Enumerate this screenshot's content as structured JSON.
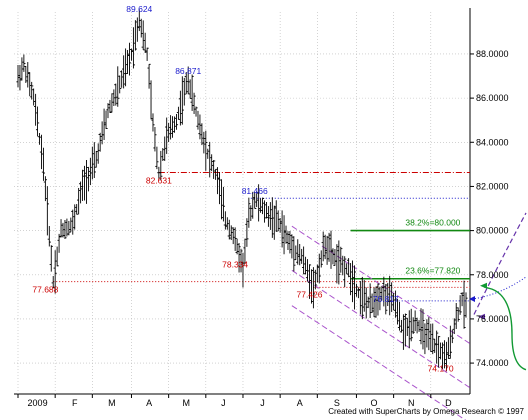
{
  "chart_data": {
    "type": "ohlc",
    "y_axis": {
      "min": 72.6,
      "max": 89.9,
      "ticks": [
        "74.0000",
        "76.0000",
        "78.0000",
        "80.0000",
        "82.0000",
        "84.0000",
        "86.0000",
        "88.0000"
      ],
      "tick_values": [
        74,
        76,
        78,
        80,
        82,
        84,
        86,
        88
      ],
      "side": "right",
      "grid": true
    },
    "x_axis": {
      "labels": [
        "2009",
        "F",
        "M",
        "A",
        "M",
        "J",
        "J",
        "A",
        "S",
        "O",
        "N",
        "D"
      ],
      "grid": true
    },
    "price_anchors": [
      {
        "i": 0,
        "v": 86.9
      },
      {
        "i": 3,
        "v": 87.5
      },
      {
        "i": 8,
        "v": 86.0
      },
      {
        "i": 13,
        "v": 83.0
      },
      {
        "i": 18,
        "v": 77.688
      },
      {
        "i": 22,
        "v": 80.0
      },
      {
        "i": 28,
        "v": 80.3
      },
      {
        "i": 33,
        "v": 82.0
      },
      {
        "i": 40,
        "v": 83.2
      },
      {
        "i": 46,
        "v": 85.4
      },
      {
        "i": 52,
        "v": 86.6
      },
      {
        "i": 58,
        "v": 88.0
      },
      {
        "i": 62,
        "v": 89.624
      },
      {
        "i": 66,
        "v": 88.0
      },
      {
        "i": 69,
        "v": 84.8
      },
      {
        "i": 72,
        "v": 82.631
      },
      {
        "i": 76,
        "v": 84.2
      },
      {
        "i": 81,
        "v": 85.0
      },
      {
        "i": 87,
        "v": 86.871
      },
      {
        "i": 92,
        "v": 85.0
      },
      {
        "i": 97,
        "v": 83.5
      },
      {
        "i": 102,
        "v": 82.3
      },
      {
        "i": 106,
        "v": 80.5
      },
      {
        "i": 110,
        "v": 79.8
      },
      {
        "i": 115,
        "v": 78.334
      },
      {
        "i": 118,
        "v": 80.6
      },
      {
        "i": 121,
        "v": 81.466
      },
      {
        "i": 127,
        "v": 80.8
      },
      {
        "i": 133,
        "v": 80.4
      },
      {
        "i": 139,
        "v": 79.4
      },
      {
        "i": 145,
        "v": 78.8
      },
      {
        "i": 151,
        "v": 77.426
      },
      {
        "i": 157,
        "v": 79.4
      },
      {
        "i": 163,
        "v": 78.6
      },
      {
        "i": 169,
        "v": 78.2
      },
      {
        "i": 174,
        "v": 77.2
      },
      {
        "i": 180,
        "v": 76.6
      },
      {
        "i": 186,
        "v": 77.2
      },
      {
        "i": 192,
        "v": 76.817
      },
      {
        "i": 197,
        "v": 75.4
      },
      {
        "i": 203,
        "v": 75.9
      },
      {
        "i": 209,
        "v": 75.2
      },
      {
        "i": 215,
        "v": 74.6
      },
      {
        "i": 219,
        "v": 74.17
      },
      {
        "i": 223,
        "v": 75.7
      },
      {
        "i": 227,
        "v": 76.9
      },
      {
        "i": 229,
        "v": 76.5
      }
    ],
    "bar_count": 230,
    "annotations": [
      {
        "text": "89.624",
        "value": 89.624,
        "color": "#1a1acc"
      },
      {
        "text": "86.871",
        "value": 86.871,
        "color": "#1a1acc"
      },
      {
        "text": "82.631",
        "value": 82.631,
        "color": "#cc0000"
      },
      {
        "text": "81.466",
        "value": 81.466,
        "color": "#1a1acc"
      },
      {
        "text": "78.334",
        "value": 78.334,
        "color": "#cc0000"
      },
      {
        "text": "77.688",
        "value": 77.688,
        "color": "#cc0000"
      },
      {
        "text": "77.426",
        "value": 77.426,
        "color": "#cc0000"
      },
      {
        "text": "76.817",
        "value": 76.817,
        "color": "#1a1acc"
      },
      {
        "text": "74.170",
        "value": 74.17,
        "color": "#cc0000"
      },
      {
        "text": "38.2%=80.000",
        "value": 80.0,
        "color": "#118811"
      },
      {
        "text": "23.6%=77.820",
        "value": 77.82,
        "color": "#118811"
      }
    ],
    "horizontal_lines": [
      {
        "value": 82.631,
        "style": "dash-dot",
        "color": "#cc0000"
      },
      {
        "value": 81.466,
        "style": "dotted",
        "color": "#1a1acc"
      },
      {
        "value": 80.0,
        "style": "solid",
        "color": "#118811"
      },
      {
        "value": 77.82,
        "style": "solid",
        "color": "#118811"
      },
      {
        "value": 77.688,
        "style": "dotted",
        "color": "#cc0000"
      },
      {
        "value": 77.426,
        "style": "dotted",
        "color": "#cc0000"
      },
      {
        "value": 76.817,
        "style": "dotted",
        "color": "#1a1acc"
      }
    ],
    "channel": {
      "color": "#aa55cc",
      "style": "dashed"
    },
    "bar_color": "#000000"
  },
  "footer": {
    "credit": "Created with SuperCharts by Omega Research © 1997"
  }
}
